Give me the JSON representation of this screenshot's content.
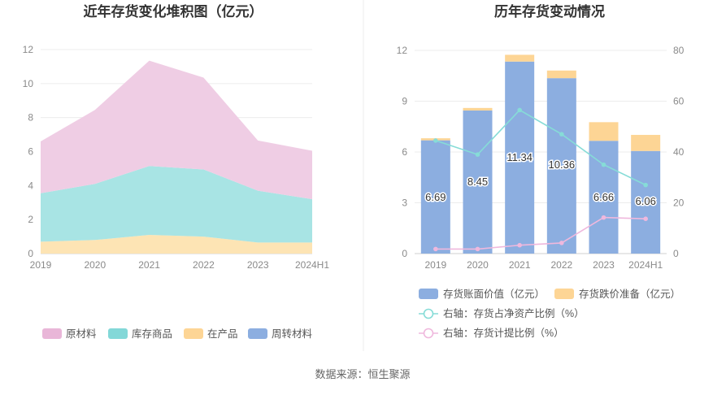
{
  "source_label": "数据来源：恒生聚源",
  "chart_data": [
    {
      "type": "area",
      "title": "近年存货变化堆积图（亿元）",
      "x": [
        "2019",
        "2020",
        "2021",
        "2022",
        "2023",
        "2024H1"
      ],
      "yticks": [
        "0",
        "2",
        "4",
        "6",
        "8",
        "10",
        "12"
      ],
      "ylim": [
        0,
        12
      ],
      "stacked": true,
      "grid": true,
      "legend_position": "bottom",
      "series": [
        {
          "name": "周转材料",
          "color": "#8caee0",
          "values": [
            0,
            0,
            0,
            0,
            0,
            0
          ]
        },
        {
          "name": "在产品",
          "color": "#fde4b4",
          "values": [
            0.7,
            0.8,
            1.1,
            1.0,
            0.65,
            0.65
          ]
        },
        {
          "name": "库存商品",
          "color": "#a8e4e4",
          "values": [
            2.85,
            3.3,
            4.05,
            3.95,
            3.05,
            2.55
          ]
        },
        {
          "name": "原材料",
          "color": "#efcde4",
          "values": [
            3.05,
            4.35,
            6.2,
            5.4,
            2.95,
            2.85
          ]
        }
      ],
      "legend": [
        {
          "name": "原材料",
          "color": "#e9b6d8"
        },
        {
          "name": "库存商品",
          "color": "#83d8d8"
        },
        {
          "name": "在产品",
          "color": "#fdd595"
        },
        {
          "name": "周转材料",
          "color": "#8caee0"
        }
      ]
    },
    {
      "type": "bar",
      "title": "历年存货变动情况",
      "categories": [
        "2019",
        "2020",
        "2021",
        "2022",
        "2023",
        "2024H1"
      ],
      "ylim": [
        0,
        12
      ],
      "yticks": [
        "0",
        "3",
        "6",
        "9",
        "12"
      ],
      "y2lim": [
        0,
        80
      ],
      "y2ticks": [
        "0",
        "20",
        "40",
        "60",
        "80"
      ],
      "stacked": true,
      "grid": true,
      "legend_position": "bottom",
      "series": [
        {
          "name": "存货账面价值（亿元）",
          "kind": "bar",
          "color": "#8caee0",
          "axis": "left",
          "values": [
            6.69,
            8.45,
            11.34,
            10.36,
            6.66,
            6.06
          ],
          "labels": [
            "6.69",
            "8.45",
            "11.34",
            "10.36",
            "6.66",
            "6.06"
          ]
        },
        {
          "name": "存货跌价准备（亿元）",
          "kind": "bar",
          "color": "#fdd595",
          "axis": "left",
          "values": [
            0.12,
            0.15,
            0.4,
            0.45,
            1.1,
            0.95
          ]
        },
        {
          "name": "右轴：存货占净资产比例（%）",
          "kind": "line",
          "color": "#86dcd7",
          "axis": "right",
          "values": [
            44.5,
            39,
            56.5,
            47,
            35,
            27
          ]
        },
        {
          "name": "右轴：存货计提比例（%）",
          "kind": "line",
          "color": "#efb8dd",
          "axis": "right",
          "values": [
            1.8,
            1.8,
            3.3,
            4.2,
            14.2,
            13.7
          ]
        }
      ]
    }
  ]
}
